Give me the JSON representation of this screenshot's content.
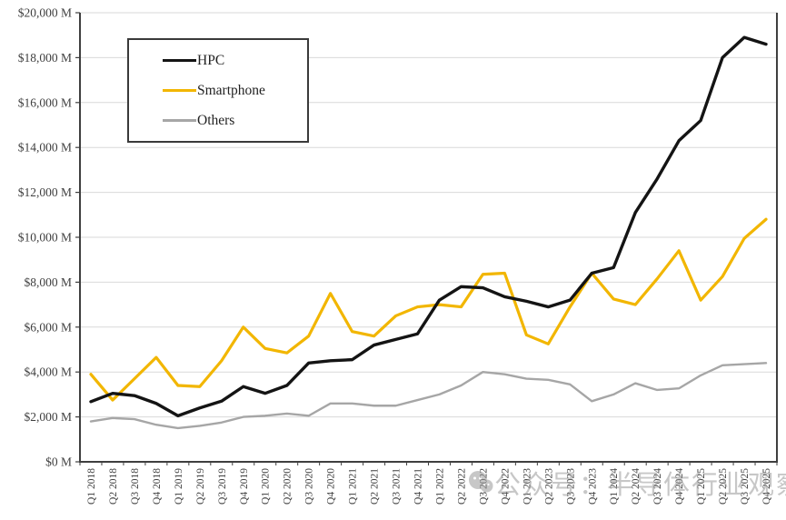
{
  "watermark": {
    "icon": "wechat-icon",
    "text": "公众号：半导体行业观察"
  },
  "colors": {
    "hpc": "#141414",
    "smartphone": "#F2B600",
    "others": "#A6A6A6",
    "gridline": "#D9D9D9",
    "axis": "#3F3F3F",
    "tick_text": "#3F3F3F"
  },
  "chart_data": {
    "type": "line",
    "title": "",
    "xlabel": "",
    "ylabel": "",
    "grid": true,
    "legend_position": "top-left",
    "categories": [
      "Q1 2018",
      "Q2 2018",
      "Q3 2018",
      "Q4 2018",
      "Q1 2019",
      "Q2 2019",
      "Q3 2019",
      "Q4 2019",
      "Q1 2020",
      "Q2 2020",
      "Q3 2020",
      "Q4 2020",
      "Q1 2021",
      "Q2 2021",
      "Q3 2021",
      "Q4 2021",
      "Q1 2022",
      "Q2 2022",
      "Q3 2022",
      "Q4 2022",
      "Q1 2023",
      "Q2 2023",
      "Q3 2023",
      "Q4 2023",
      "Q1 2024",
      "Q2 2024",
      "Q3 2024",
      "Q4 2024",
      "Q1 2025",
      "Q2 2025",
      "Q3 2025",
      "Q4 2025"
    ],
    "y_axis": {
      "min": 0,
      "max": 20000,
      "step": 2000,
      "tick_labels": [
        "$0 M",
        "$2,000 M",
        "$4,000 M",
        "$6,000 M",
        "$8,000 M",
        "$10,000 M",
        "$12,000 M",
        "$14,000 M",
        "$16,000 M",
        "$18,000 M",
        "$20,000 M"
      ]
    },
    "series": [
      {
        "name": "HPC",
        "color": "#141414",
        "values": [
          2680,
          3050,
          2950,
          2600,
          2050,
          2400,
          2700,
          3350,
          3050,
          3400,
          4400,
          4500,
          4550,
          5200,
          5450,
          5700,
          7200,
          7800,
          7750,
          7350,
          7150,
          6900,
          7200,
          8400,
          8650,
          11100,
          12600,
          14300,
          15200,
          18000,
          18900,
          18600
        ]
      },
      {
        "name": "Smartphone",
        "color": "#F2B600",
        "values": [
          3900,
          2750,
          3700,
          4650,
          3400,
          3350,
          4500,
          6000,
          5050,
          4850,
          5600,
          7500,
          5800,
          5600,
          6500,
          6900,
          7000,
          6900,
          8350,
          8400,
          5650,
          5250,
          6900,
          8400,
          7250,
          7000,
          8150,
          9400,
          7200,
          8250,
          9950,
          10800
        ]
      },
      {
        "name": "Others",
        "color": "#A6A6A6",
        "values": [
          1800,
          1950,
          1900,
          1650,
          1500,
          1600,
          1750,
          2000,
          2050,
          2150,
          2050,
          2600,
          2600,
          2500,
          2500,
          2750,
          3000,
          3400,
          4000,
          3900,
          3700,
          3650,
          3450,
          2700,
          3000,
          3500,
          3200,
          3270,
          3850,
          4300,
          4350,
          4400
        ]
      }
    ]
  }
}
